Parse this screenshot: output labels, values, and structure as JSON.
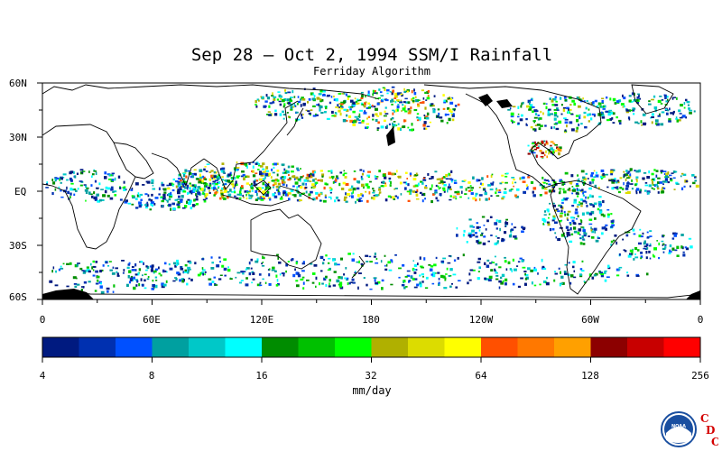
{
  "title": "Sep 28 – Oct 2, 1994 SSM/I Rainfall",
  "subtitle": "Ferriday Algorithm",
  "map": {
    "lat_labels": [
      "60N",
      "30N",
      "EQ",
      "30S",
      "60S"
    ],
    "lon_labels": [
      "0",
      "60E",
      "120E",
      "180",
      "120W",
      "60W",
      "0"
    ],
    "land_color": "#000000",
    "no_rain_color": "#ffffff"
  },
  "colorbar": {
    "colors": [
      "#001a80",
      "#0030b0",
      "#0050ff",
      "#00a0a0",
      "#00c8c8",
      "#00ffff",
      "#008c00",
      "#00c000",
      "#00ff00",
      "#b0b000",
      "#dcdc00",
      "#ffff00",
      "#ff5000",
      "#ff7800",
      "#ffa000",
      "#8c0000",
      "#c80000",
      "#ff0000"
    ],
    "tick_labels": [
      "4",
      "8",
      "16",
      "32",
      "64",
      "128",
      "256"
    ],
    "unit_label": "mm/day"
  },
  "logo": {
    "name": "NOAA",
    "letters": [
      "C",
      "D",
      "C"
    ]
  }
}
